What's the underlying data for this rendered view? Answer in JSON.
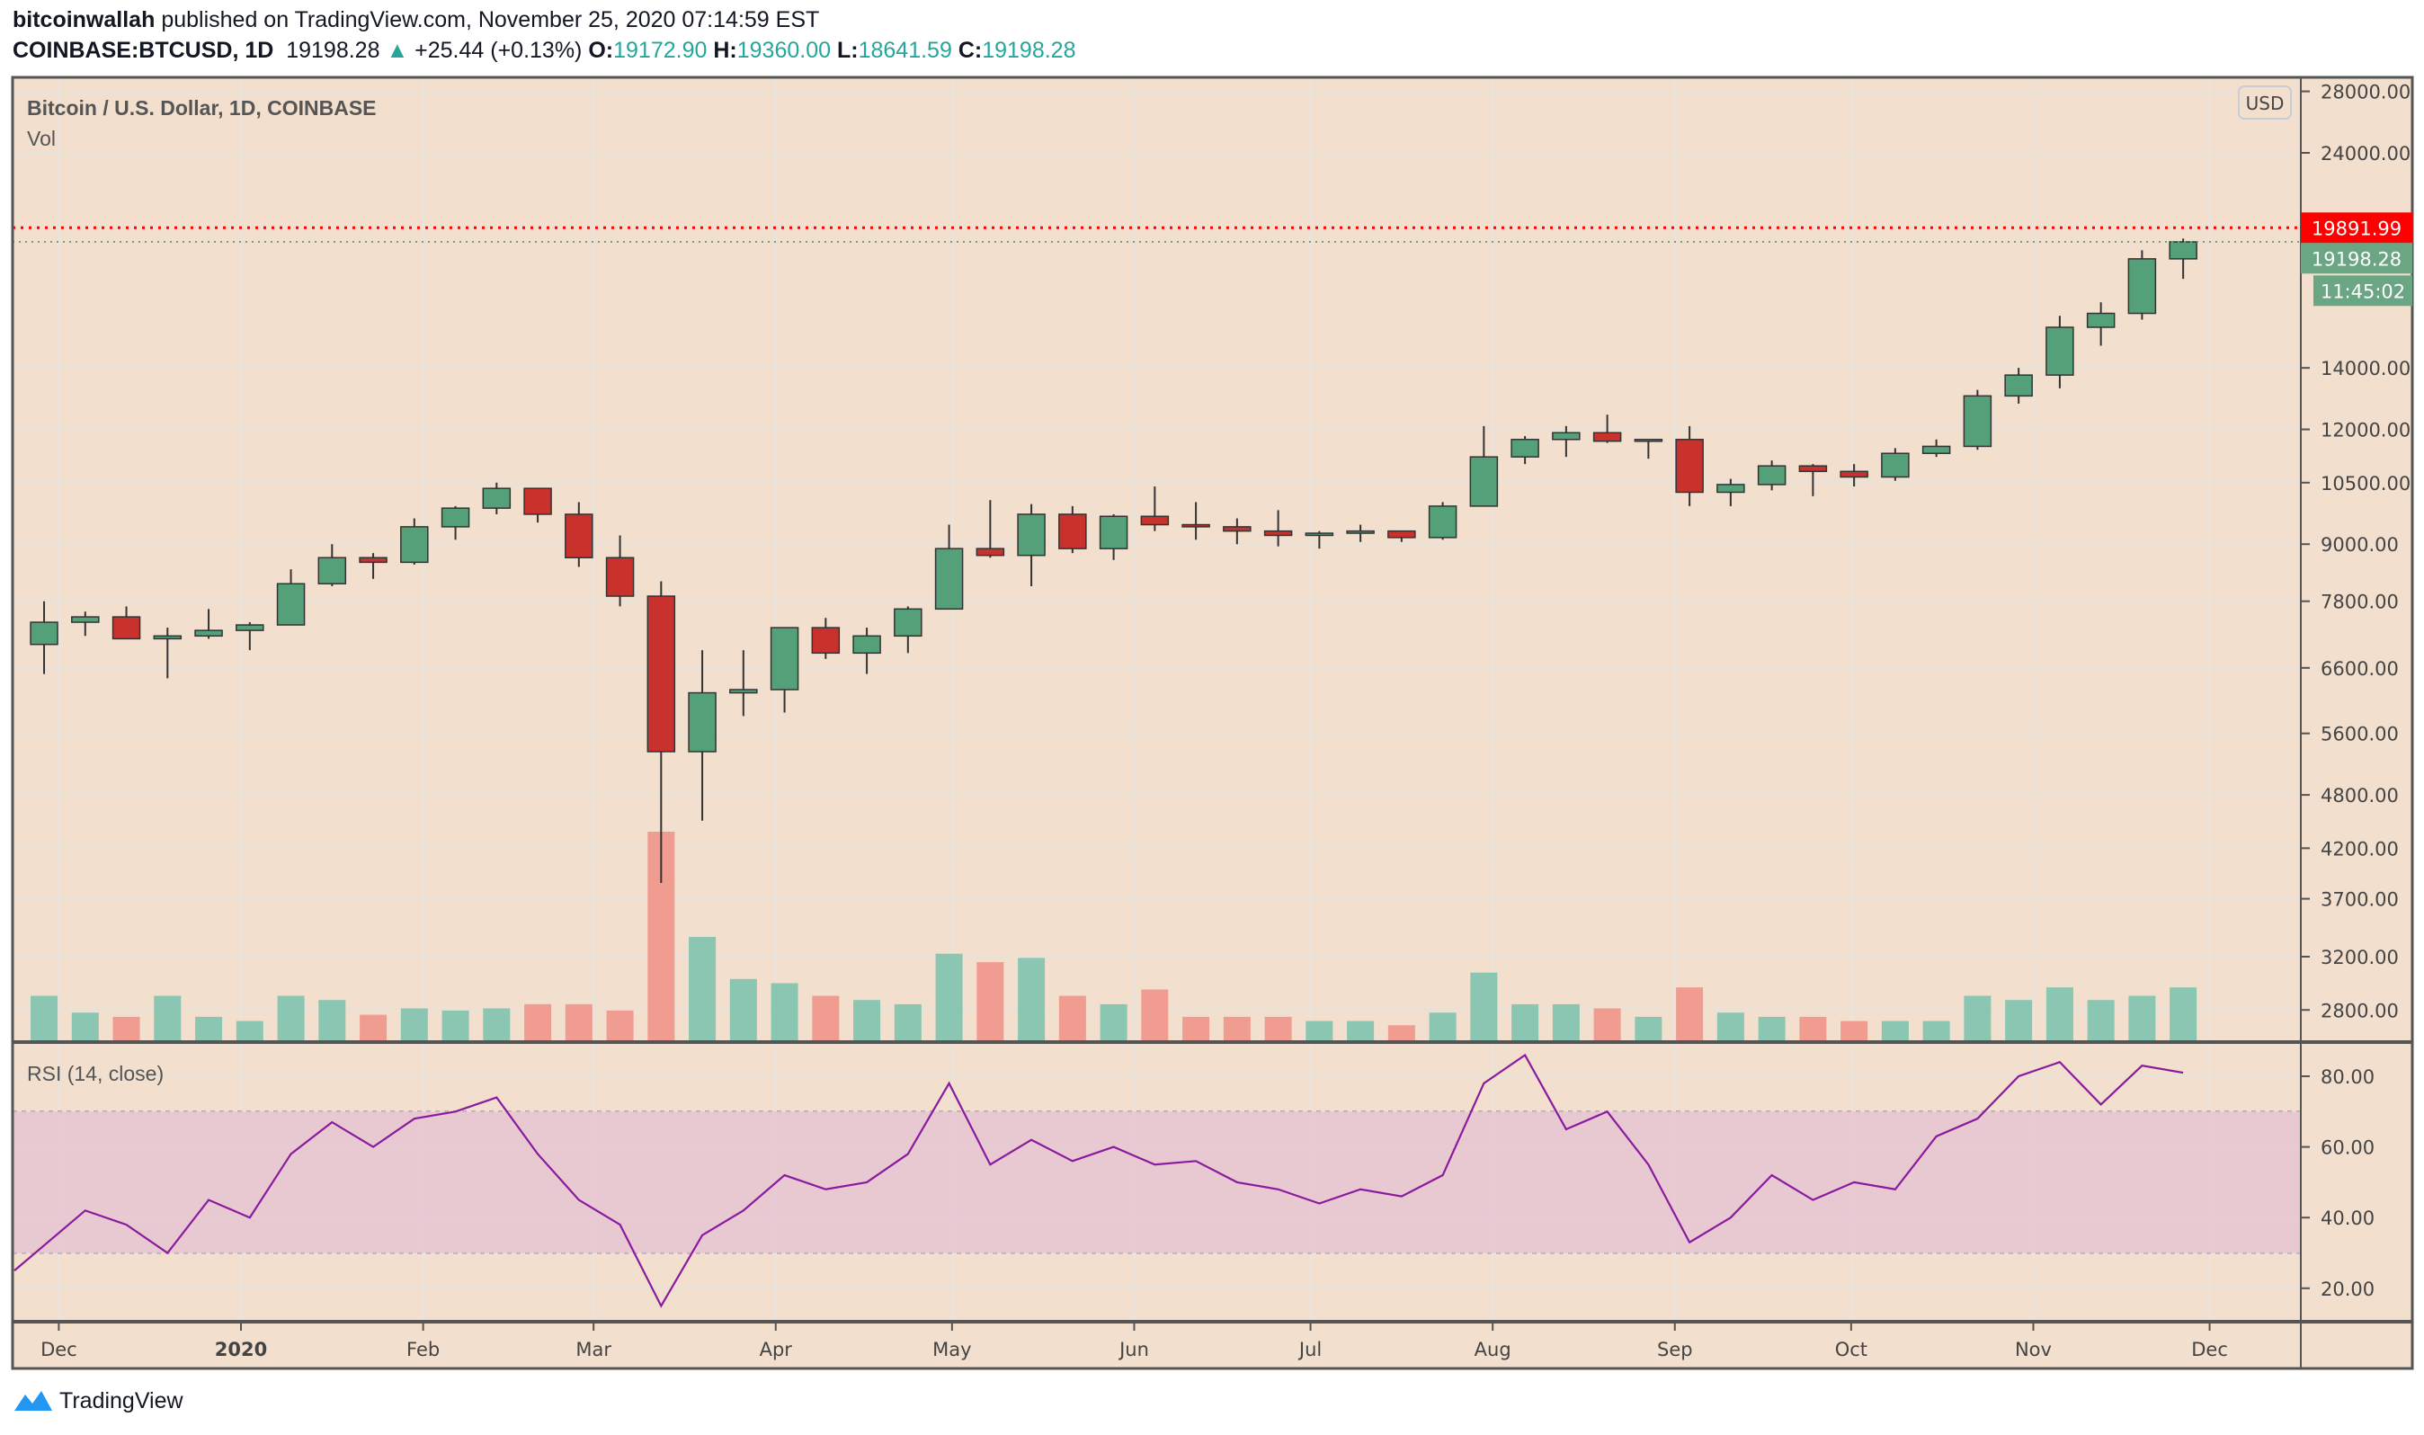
{
  "header": {
    "author": "bitcoinwallah",
    "published_text": "published on TradingView.com, November 25, 2020 07:14:59 EST",
    "symbol": "COINBASE:BTCUSD, 1D",
    "last": "19198.28",
    "change": "+25.44 (+0.13%)",
    "o_label": "O:",
    "o": "19172.90",
    "h_label": "H:",
    "h": "19360.00",
    "l_label": "L:",
    "l": "18641.59",
    "c_label": "C:",
    "c": "19198.28",
    "arrow_icon": "triangle-up-icon"
  },
  "legend": {
    "title": "Bitcoin / U.S. Dollar, 1D, COINBASE",
    "vol": "Vol",
    "rsi": "RSI (14, close)"
  },
  "currency_button": "USD",
  "price_labels": {
    "high_line": "19891.99",
    "last_price": "19198.28",
    "countdown": "11:45:02"
  },
  "colors": {
    "background": "#f2dfce",
    "up": "#53a079",
    "down": "#c9322c",
    "vol_up": "#7ec3ae",
    "vol_down": "#ef958a",
    "rsi_line": "#8a1a9e",
    "rsi_band": "#e6c6d2",
    "high_line": "#ff0000",
    "last_label": "#6aa584"
  },
  "footer": {
    "brand": "TradingView"
  },
  "chart_data": [
    {
      "type": "candlestick",
      "title": "Bitcoin / U.S. Dollar, 1D, COINBASE",
      "yscale": "log",
      "y_ticks": [
        28000,
        24000,
        14000,
        12000,
        10500,
        9000,
        7800,
        6600,
        5600,
        4800,
        4200,
        3700,
        3200,
        2800
      ],
      "y_tick_labels": [
        "28000.00",
        "24000.00",
        "14000.00",
        "12000.00",
        "10500.00",
        "9000.00",
        "7800.00",
        "6600.00",
        "5600.00",
        "4800.00",
        "4200.00",
        "3700.00",
        "3200.00",
        "2800.00"
      ],
      "x_ticks": [
        {
          "date": "2019-12-01",
          "label": "Dec"
        },
        {
          "date": "2020-01-01",
          "label": "2020"
        },
        {
          "date": "2020-02-01",
          "label": "Feb"
        },
        {
          "date": "2020-03-01",
          "label": "Mar"
        },
        {
          "date": "2020-04-01",
          "label": "Apr"
        },
        {
          "date": "2020-05-01",
          "label": "May"
        },
        {
          "date": "2020-06-01",
          "label": "Jun"
        },
        {
          "date": "2020-07-01",
          "label": "Jul"
        },
        {
          "date": "2020-08-01",
          "label": "Aug"
        },
        {
          "date": "2020-09-01",
          "label": "Sep"
        },
        {
          "date": "2020-10-01",
          "label": "Oct"
        },
        {
          "date": "2020-11-01",
          "label": "Nov"
        },
        {
          "date": "2020-12-01",
          "label": "Dec"
        }
      ],
      "horizontal_lines": [
        19891.99,
        19198.28
      ],
      "grid": true,
      "columns": [
        "date",
        "open",
        "high",
        "low",
        "close",
        "volume_rel"
      ],
      "candles": [
        [
          "2019-11-25",
          7000,
          7800,
          6500,
          7400,
          22
        ],
        [
          "2019-12-02",
          7400,
          7600,
          7150,
          7500,
          14
        ],
        [
          "2019-12-09",
          7500,
          7700,
          7100,
          7100,
          12
        ],
        [
          "2019-12-16",
          7100,
          7300,
          6430,
          7150,
          22
        ],
        [
          "2019-12-23",
          7150,
          7650,
          7100,
          7250,
          12
        ],
        [
          "2019-12-30",
          7250,
          7400,
          6900,
          7350,
          10
        ],
        [
          "2020-01-06",
          7350,
          8450,
          7350,
          8150,
          22
        ],
        [
          "2020-01-13",
          8150,
          9000,
          8100,
          8700,
          20
        ],
        [
          "2020-01-20",
          8700,
          8800,
          8250,
          8600,
          13
        ],
        [
          "2020-01-27",
          8600,
          9600,
          8550,
          9400,
          16
        ],
        [
          "2020-02-03",
          9400,
          9900,
          9100,
          9850,
          15
        ],
        [
          "2020-02-10",
          9850,
          10500,
          9700,
          10350,
          16
        ],
        [
          "2020-02-17",
          10350,
          10350,
          9500,
          9700,
          18
        ],
        [
          "2020-02-24",
          9700,
          10000,
          8500,
          8700,
          18
        ],
        [
          "2020-03-02",
          8700,
          9200,
          7700,
          7900,
          15
        ],
        [
          "2020-03-09",
          7900,
          8200,
          3850,
          5350,
          100
        ],
        [
          "2020-03-16",
          5350,
          6900,
          4500,
          6200,
          50
        ],
        [
          "2020-03-23",
          6200,
          6900,
          5850,
          6250,
          30
        ],
        [
          "2020-03-30",
          6250,
          7300,
          5900,
          7300,
          28
        ],
        [
          "2020-04-06",
          7300,
          7480,
          6750,
          6850,
          22
        ],
        [
          "2020-04-13",
          6850,
          7300,
          6500,
          7150,
          20
        ],
        [
          "2020-04-20",
          7150,
          7700,
          6850,
          7650,
          18
        ],
        [
          "2020-04-27",
          7650,
          9450,
          7650,
          8900,
          42
        ],
        [
          "2020-05-04",
          8900,
          10050,
          8700,
          8750,
          38
        ],
        [
          "2020-05-11",
          8750,
          9950,
          8100,
          9700,
          40
        ],
        [
          "2020-05-18",
          9700,
          9900,
          8800,
          8900,
          22
        ],
        [
          "2020-05-25",
          8900,
          9700,
          8650,
          9650,
          18
        ],
        [
          "2020-06-01",
          9650,
          10400,
          9300,
          9450,
          25
        ],
        [
          "2020-06-08",
          9450,
          10000,
          9100,
          9400,
          12
        ],
        [
          "2020-06-15",
          9400,
          9600,
          9000,
          9300,
          12
        ],
        [
          "2020-06-22",
          9300,
          9800,
          8950,
          9200,
          12
        ],
        [
          "2020-06-29",
          9200,
          9300,
          8900,
          9250,
          10
        ],
        [
          "2020-07-06",
          9250,
          9450,
          9050,
          9300,
          10
        ],
        [
          "2020-07-13",
          9300,
          9300,
          9050,
          9150,
          8
        ],
        [
          "2020-07-20",
          9150,
          10000,
          9100,
          9900,
          14
        ],
        [
          "2020-07-27",
          9900,
          12100,
          9900,
          11200,
          33
        ],
        [
          "2020-08-03",
          11200,
          11800,
          11000,
          11700,
          18
        ],
        [
          "2020-08-10",
          11700,
          12100,
          11200,
          11900,
          18
        ],
        [
          "2020-08-17",
          11900,
          12450,
          11600,
          11650,
          16
        ],
        [
          "2020-08-24",
          11650,
          11700,
          11150,
          11700,
          12
        ],
        [
          "2020-08-31",
          11700,
          12100,
          9900,
          10250,
          26
        ],
        [
          "2020-09-07",
          10250,
          10600,
          9900,
          10450,
          14
        ],
        [
          "2020-09-14",
          10450,
          11100,
          10300,
          10950,
          12
        ],
        [
          "2020-09-21",
          10950,
          11000,
          10150,
          10800,
          12
        ],
        [
          "2020-09-28",
          10800,
          11000,
          10400,
          10650,
          10
        ],
        [
          "2020-10-05",
          10650,
          11450,
          10550,
          11300,
          10
        ],
        [
          "2020-10-12",
          11300,
          11700,
          11200,
          11500,
          10
        ],
        [
          "2020-10-19",
          11500,
          13250,
          11400,
          13050,
          22
        ],
        [
          "2020-10-26",
          13050,
          14000,
          12800,
          13750,
          20
        ],
        [
          "2020-11-02",
          13750,
          15950,
          13300,
          15500,
          26
        ],
        [
          "2020-11-09",
          15500,
          16500,
          14800,
          16050,
          20
        ],
        [
          "2020-11-16",
          16050,
          18800,
          15800,
          18400,
          22
        ],
        [
          "2020-11-23",
          18400,
          19360,
          17500,
          19198.28,
          26
        ]
      ]
    },
    {
      "type": "line",
      "title": "RSI (14, close)",
      "ylim": [
        10,
        90
      ],
      "y_ticks": [
        80,
        60,
        40,
        20
      ],
      "y_tick_labels": [
        "80.00",
        "60.00",
        "40.00",
        "20.00"
      ],
      "band": [
        30,
        70
      ],
      "values": [
        25,
        42,
        38,
        30,
        45,
        40,
        58,
        67,
        60,
        68,
        70,
        74,
        58,
        45,
        38,
        15,
        35,
        42,
        52,
        48,
        50,
        58,
        78,
        55,
        62,
        56,
        60,
        55,
        56,
        50,
        48,
        44,
        48,
        46,
        52,
        78,
        86,
        65,
        70,
        55,
        33,
        40,
        52,
        45,
        50,
        48,
        63,
        68,
        80,
        84,
        72,
        83,
        81
      ]
    }
  ]
}
